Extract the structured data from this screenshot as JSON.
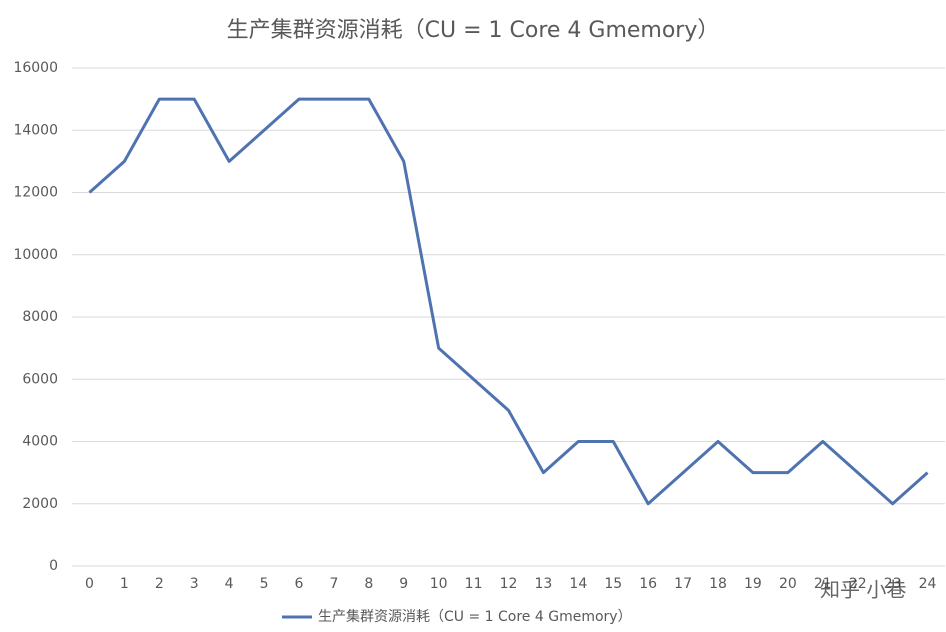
{
  "chart_data": {
    "type": "line",
    "title": "生产集群资源消耗（CU = 1 Core 4 Gmemory）",
    "categories": [
      "0",
      "1",
      "2",
      "3",
      "4",
      "5",
      "6",
      "7",
      "8",
      "9",
      "10",
      "11",
      "12",
      "13",
      "14",
      "15",
      "16",
      "17",
      "18",
      "19",
      "20",
      "21",
      "22",
      "23",
      "24"
    ],
    "series": [
      {
        "name": "生产集群资源消耗（CU = 1 Core 4 Gmemory）",
        "color": "#4f72b0",
        "values": [
          12000,
          13000,
          15000,
          15000,
          13000,
          14000,
          15000,
          15000,
          15000,
          13000,
          7000,
          6000,
          5000,
          3000,
          4000,
          4000,
          2000,
          3000,
          4000,
          3000,
          3000,
          4000,
          3000,
          2000,
          3000
        ]
      }
    ],
    "ylim": [
      0,
      16000
    ],
    "yticks": [
      0,
      2000,
      4000,
      6000,
      8000,
      10000,
      12000,
      14000,
      16000
    ],
    "grid": true,
    "legend": "bottom",
    "watermark": "知乎 小巷"
  }
}
